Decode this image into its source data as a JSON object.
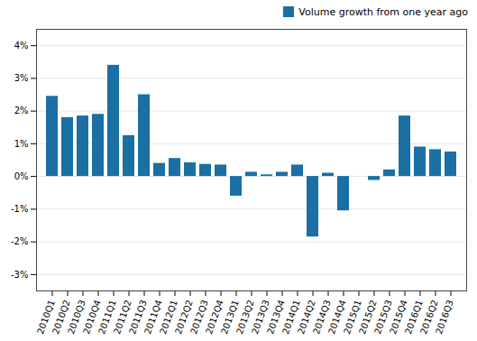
{
  "chart_data": {
    "type": "bar",
    "categories": [
      "2010Q1",
      "2010Q2",
      "2010Q3",
      "2010Q4",
      "2011Q1",
      "2011Q2",
      "2011Q3",
      "2011Q4",
      "2012Q1",
      "2012Q2",
      "2012Q3",
      "2012Q4",
      "2013Q1",
      "2013Q2",
      "2013Q3",
      "2013Q4",
      "2014Q1",
      "2014Q2",
      "2014Q3",
      "2014Q4",
      "2015Q1",
      "2015Q2",
      "2015Q3",
      "2015Q4",
      "2016Q1",
      "2016Q2",
      "2016Q3"
    ],
    "series": [
      {
        "name": "Volume growth from one year ago",
        "color": "#1a6fa3",
        "values": [
          2.45,
          1.8,
          1.85,
          1.9,
          3.4,
          1.25,
          2.5,
          0.4,
          0.55,
          0.42,
          0.37,
          0.35,
          -0.6,
          0.13,
          0.05,
          0.13,
          0.35,
          -1.85,
          0.1,
          -1.05,
          0.0,
          -0.12,
          0.2,
          1.85,
          0.9,
          0.82,
          0.75
        ]
      }
    ],
    "ylim": [
      -3.5,
      4.5
    ],
    "yticks": [
      {
        "value": -3,
        "label": "-3%"
      },
      {
        "value": -2,
        "label": "-2%"
      },
      {
        "value": -1,
        "label": "-1%"
      },
      {
        "value": 0,
        "label": "0%"
      },
      {
        "value": 1,
        "label": "1%"
      },
      {
        "value": 2,
        "label": "2%"
      },
      {
        "value": 3,
        "label": "3%"
      },
      {
        "value": 4,
        "label": "4%"
      }
    ],
    "grid": true,
    "legend": "upper right"
  }
}
